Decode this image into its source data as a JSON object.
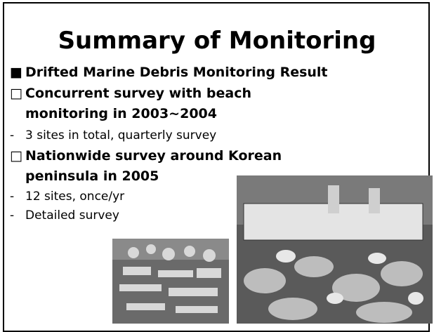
{
  "header": {
    "title": "Summary of Monitoring"
  },
  "bullets": [
    {
      "marker": "■",
      "text": "Drifted Marine Debris Monitoring Result"
    },
    {
      "marker": "□",
      "text": "Concurrent survey with beach"
    },
    {
      "text": "monitoring in 2003~2004"
    },
    {
      "marker": "-",
      "text": "3 sites in total, quarterly survey"
    },
    {
      "marker": "□",
      "text": "Nationwide survey around Korean"
    },
    {
      "text": "peninsula in 2005"
    },
    {
      "marker": "-",
      "text": "12 sites, once/yr"
    },
    {
      "marker": "-",
      "text": "Detailed survey"
    }
  ]
}
